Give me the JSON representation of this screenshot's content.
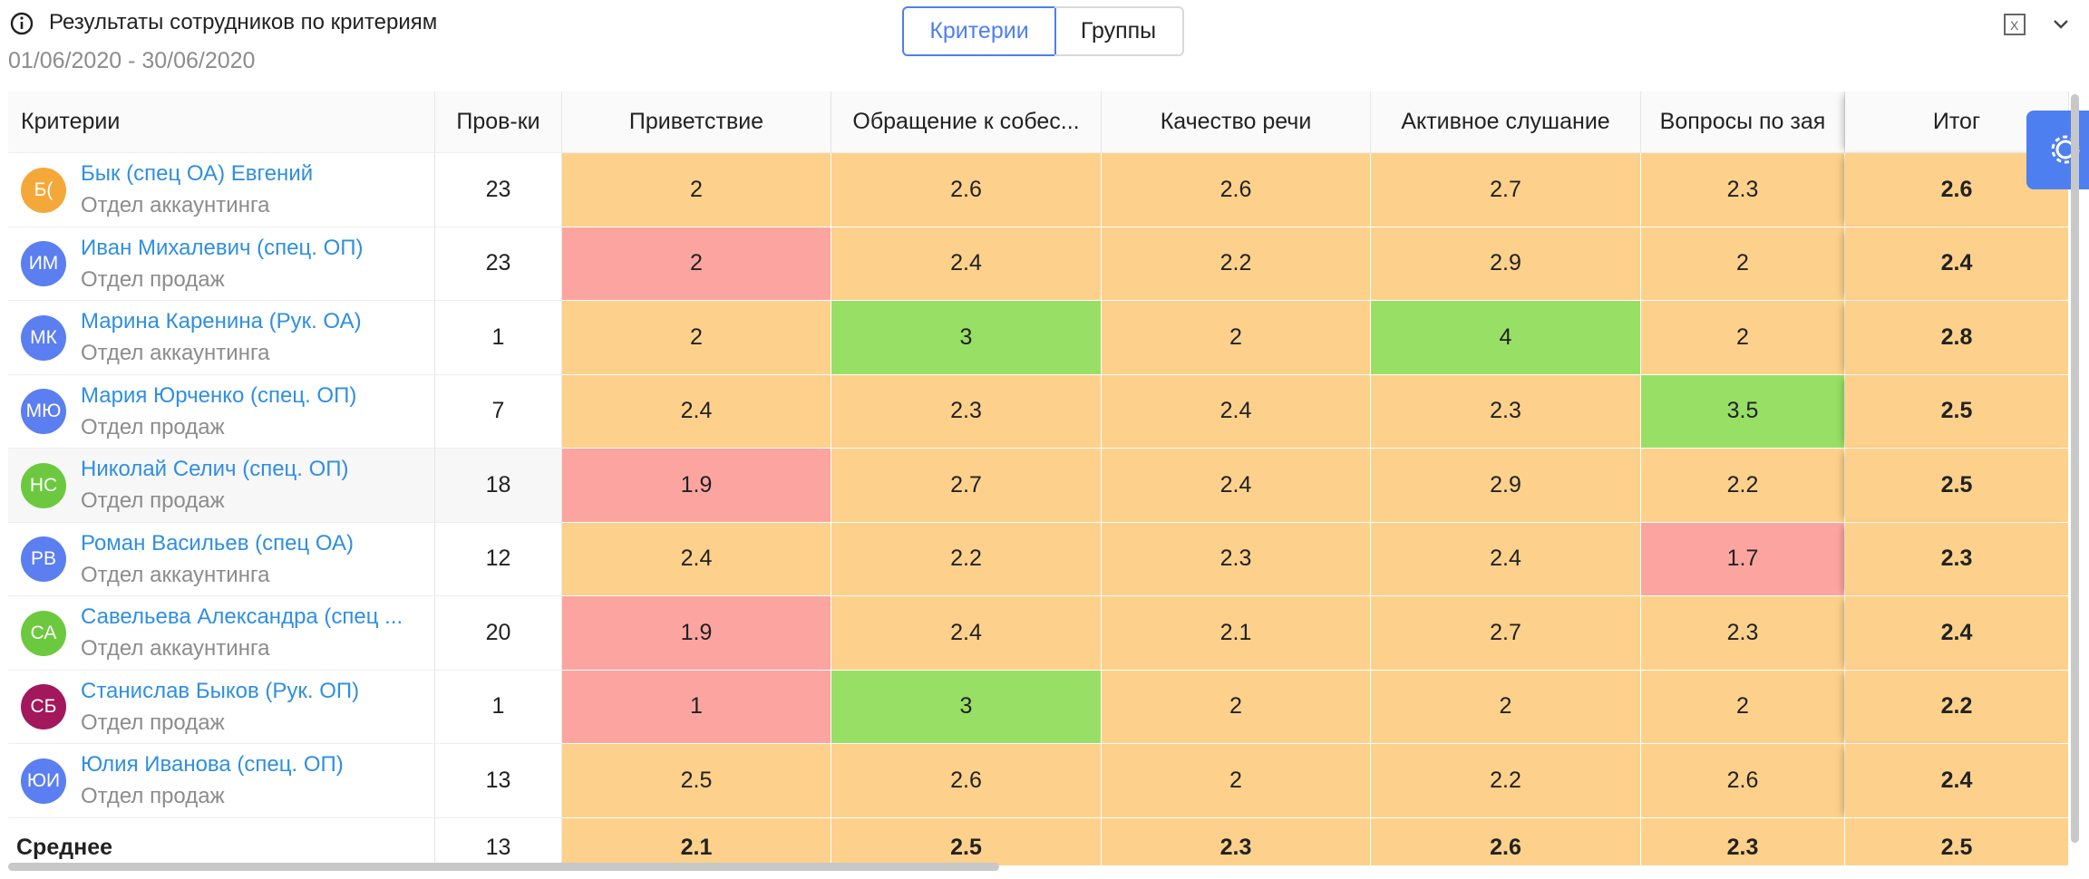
{
  "header": {
    "title": "Результаты сотрудников по критериям",
    "date_range": "01/06/2020 - 30/06/2020"
  },
  "tabs": [
    "Критерии",
    "Группы"
  ],
  "table": {
    "columns": [
      "Критерии",
      "Пров-ки",
      "Приветствие",
      "Обращение к собес...",
      "Качество речи",
      "Активное слушание",
      "Вопросы по зая",
      "Итог"
    ],
    "rows": [
      {
        "initials": "Б(",
        "avatar_color": "#f5a83a",
        "name": "Бык (спец ОА) Евгений",
        "department": "Отдел аккаунтинга",
        "checks": 23,
        "scores": [
          2,
          2.6,
          2.6,
          2.7,
          2.3,
          2.6
        ],
        "colors": [
          "#fdd18b",
          "#fdd18b",
          "#fdd18b",
          "#fdd18b",
          "#fdd18b",
          "#fdd18b"
        ]
      },
      {
        "initials": "ИМ",
        "avatar_color": "#5b7ef0",
        "name": "Иван Михалевич (спец. ОП)",
        "department": "Отдел продаж",
        "checks": 23,
        "scores": [
          2,
          2.4,
          2.2,
          2.9,
          2,
          2.4
        ],
        "colors": [
          "#fca5a0",
          "#fdd18b",
          "#fdd18b",
          "#fdd18b",
          "#fdd18b",
          "#fdd18b"
        ]
      },
      {
        "initials": "МК",
        "avatar_color": "#5b7ef0",
        "name": "Марина Каренина (Рук. ОА)",
        "department": "Отдел аккаунтинга",
        "checks": 1,
        "scores": [
          2,
          3,
          2,
          4,
          2,
          2.8
        ],
        "colors": [
          "#fdd18b",
          "#97e065",
          "#fdd18b",
          "#97e065",
          "#fdd18b",
          "#fdd18b"
        ]
      },
      {
        "initials": "МЮ",
        "avatar_color": "#5b7ef0",
        "name": "Мария Юрченко (спец. ОП)",
        "department": "Отдел продаж",
        "checks": 7,
        "scores": [
          2.4,
          2.3,
          2.4,
          2.3,
          3.5,
          2.5
        ],
        "colors": [
          "#fdd18b",
          "#fdd18b",
          "#fdd18b",
          "#fdd18b",
          "#97e065",
          "#fdd18b"
        ]
      },
      {
        "initials": "НС",
        "avatar_color": "#6cc93f",
        "name": "Николай Селич (спец. ОП)",
        "department": "Отдел продаж",
        "checks": 18,
        "scores": [
          1.9,
          2.7,
          2.4,
          2.9,
          2.2,
          2.5
        ],
        "colors": [
          "#fca5a0",
          "#fdd18b",
          "#fdd18b",
          "#fdd18b",
          "#fdd18b",
          "#fdd18b"
        ]
      },
      {
        "initials": "РВ",
        "avatar_color": "#5b7ef0",
        "name": "Роман Васильев (спец ОА)",
        "department": "Отдел аккаунтинга",
        "checks": 12,
        "scores": [
          2.4,
          2.2,
          2.3,
          2.4,
          1.7,
          2.3
        ],
        "colors": [
          "#fdd18b",
          "#fdd18b",
          "#fdd18b",
          "#fdd18b",
          "#fca5a0",
          "#fdd18b"
        ]
      },
      {
        "initials": "СА",
        "avatar_color": "#6cc93f",
        "name": "Савельева Александра (спец ...",
        "department": "Отдел аккаунтинга",
        "checks": 20,
        "scores": [
          1.9,
          2.4,
          2.1,
          2.7,
          2.3,
          2.4
        ],
        "colors": [
          "#fca5a0",
          "#fdd18b",
          "#fdd18b",
          "#fdd18b",
          "#fdd18b",
          "#fdd18b"
        ]
      },
      {
        "initials": "СБ",
        "avatar_color": "#a3175d",
        "name": "Станислав Быков (Рук. ОП)",
        "department": "Отдел продаж",
        "checks": 1,
        "scores": [
          1,
          3,
          2,
          2,
          2,
          2.2
        ],
        "colors": [
          "#fca5a0",
          "#97e065",
          "#fdd18b",
          "#fdd18b",
          "#fdd18b",
          "#fdd18b"
        ]
      },
      {
        "initials": "ЮИ",
        "avatar_color": "#5b7ef0",
        "name": "Юлия Иванова (спец. ОП)",
        "department": "Отдел продаж",
        "checks": 13,
        "scores": [
          2.5,
          2.6,
          2,
          2.2,
          2.6,
          2.4
        ],
        "colors": [
          "#fdd18b",
          "#fdd18b",
          "#fdd18b",
          "#fdd18b",
          "#fdd18b",
          "#fdd18b"
        ]
      }
    ],
    "average": {
      "label": "Среднее",
      "checks": 13,
      "scores": [
        2.1,
        2.5,
        2.3,
        2.6,
        2.3,
        2.5
      ],
      "colors": [
        "#fdd18b",
        "#fdd18b",
        "#fdd18b",
        "#fdd18b",
        "#fdd18b",
        "#fdd18b"
      ]
    }
  }
}
